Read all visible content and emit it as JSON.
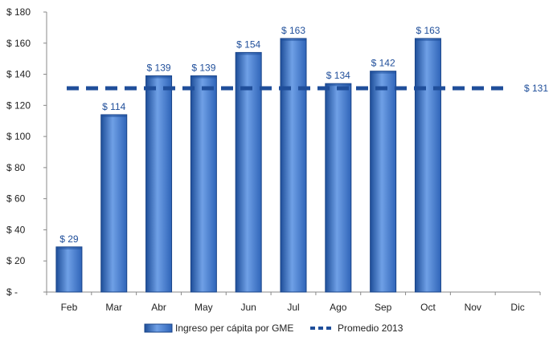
{
  "chart_data": {
    "type": "bar",
    "categories": [
      "Feb",
      "Mar",
      "Abr",
      "May",
      "Jun",
      "Jul",
      "Ago",
      "Sep",
      "Oct",
      "Nov",
      "Dic"
    ],
    "series": [
      {
        "name": "Ingreso per cápita por GME",
        "values": [
          29,
          114,
          139,
          139,
          154,
          163,
          134,
          142,
          163,
          null,
          null
        ],
        "data_labels": [
          "$ 29",
          "$ 114",
          "$ 139",
          "$ 139",
          "$ 154",
          "$ 163",
          "$ 134",
          "$ 142",
          "$ 163",
          "",
          ""
        ]
      }
    ],
    "reference_line": {
      "name": "Promedio 2013",
      "value": 131,
      "label": "$ 131",
      "style": "dashed"
    },
    "ylim": [
      0,
      180
    ],
    "yticks": [
      0,
      20,
      40,
      60,
      80,
      100,
      120,
      140,
      160,
      180
    ],
    "ytick_labels": [
      "$ -",
      "$ 20",
      "$ 40",
      "$ 60",
      "$ 80",
      "$ 100",
      "$ 120",
      "$ 140",
      "$ 160",
      "$ 180"
    ],
    "title": "",
    "xlabel": "",
    "ylabel": "",
    "grid": false,
    "legend_position": "bottom",
    "colors": {
      "bar": "#3A72C8",
      "bar_light": "#6FA0E6",
      "bar_dark": "#1E4E99",
      "bar_edge": "#1A4488",
      "avg_line": "#1F4E9A",
      "label": "#1F4E9A"
    }
  },
  "legend": {
    "bar_label": "Ingreso per cápita por GME",
    "line_label": "Promedio 2013"
  }
}
